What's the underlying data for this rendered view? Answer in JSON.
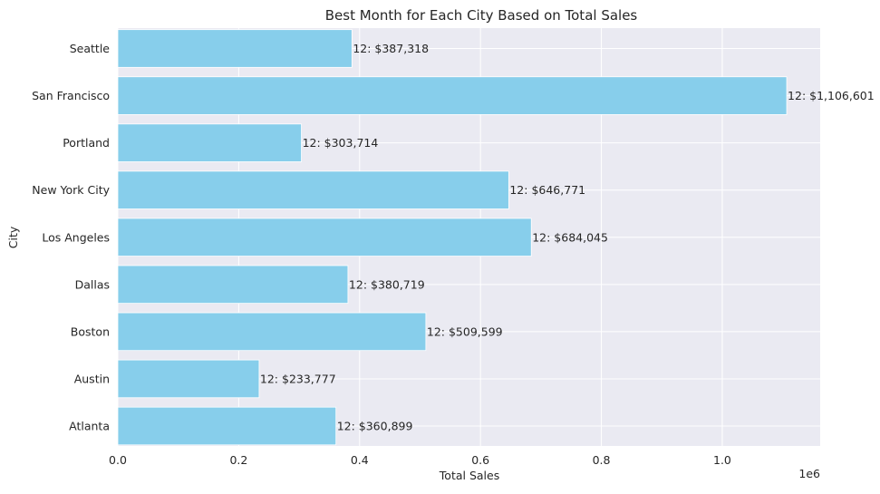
{
  "chart_data": {
    "type": "bar",
    "orientation": "horizontal",
    "title": "Best Month for Each City Based on Total Sales",
    "xlabel": "Total Sales",
    "ylabel": "City",
    "x_scale_label": "1e6",
    "xlim": [
      0,
      1162000
    ],
    "x_ticks": [
      0,
      200000,
      400000,
      600000,
      800000,
      1000000
    ],
    "x_tick_labels": [
      "0.0",
      "0.2",
      "0.4",
      "0.6",
      "0.8",
      "1.0"
    ],
    "grid": true,
    "bar_color": "#87CEEB",
    "background_color": "#EAEAF2",
    "categories": [
      "Atlanta",
      "Austin",
      "Boston",
      "Dallas",
      "Los Angeles",
      "New York City",
      "Portland",
      "San Francisco",
      "Seattle"
    ],
    "values": [
      360899,
      233777,
      509599,
      380719,
      684045,
      646771,
      303714,
      1106601,
      387318
    ],
    "data_labels": [
      "12: $360,899",
      "12: $233,777",
      "12: $509,599",
      "12: $380,719",
      "12: $684,045",
      "12: $646,771",
      "12: $303,714",
      "12: $1,106,601",
      "12: $387,318"
    ]
  }
}
